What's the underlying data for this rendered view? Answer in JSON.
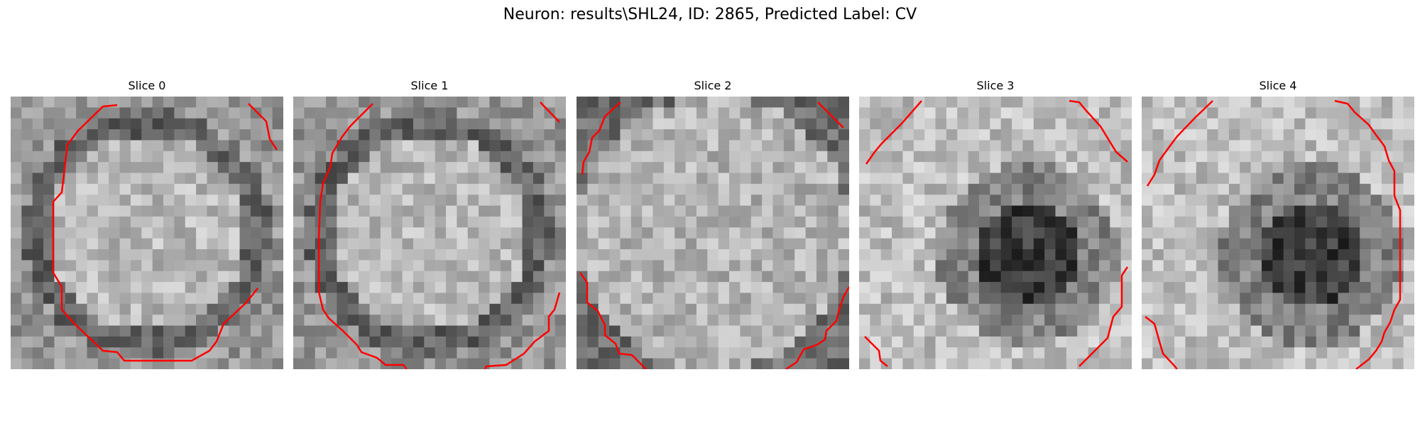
{
  "figure": {
    "title": "Neuron: results\\SHL24, ID: 2865, Predicted Label: CV"
  },
  "panels": [
    {
      "title": "Slice 0",
      "image": "grayscale-slice-bright-cell-dark-ring",
      "contour_color": "#ff0000"
    },
    {
      "title": "Slice 1",
      "image": "grayscale-slice-bright-cell-dark-ring",
      "contour_color": "#ff0000"
    },
    {
      "title": "Slice 2",
      "image": "grayscale-slice-bright-noisy",
      "contour_color": "#ff0000"
    },
    {
      "title": "Slice 3",
      "image": "grayscale-slice-dark-center",
      "contour_color": "#ff0000"
    },
    {
      "title": "Slice 4",
      "image": "grayscale-slice-dark-center",
      "contour_color": "#ff0000"
    }
  ]
}
